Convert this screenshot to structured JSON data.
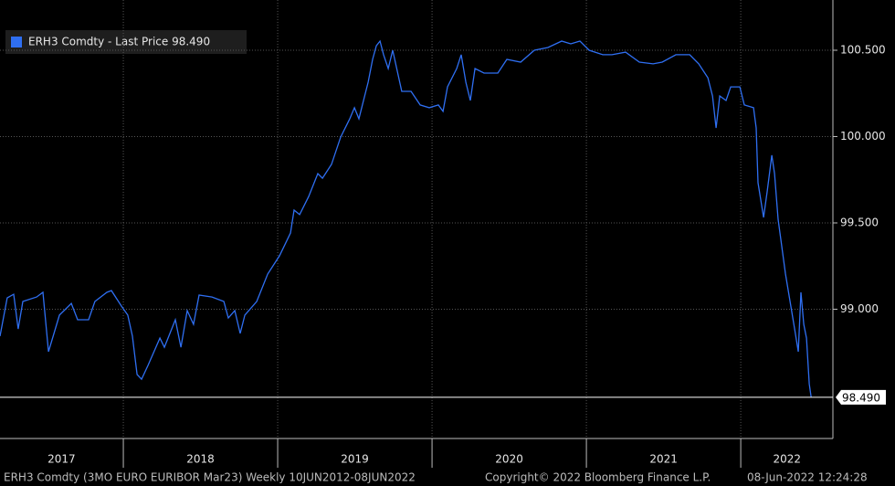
{
  "chart_data": {
    "type": "line",
    "series": [
      {
        "name": "ERH3 Comdty - Last Price 98.490",
        "color": "#2f6ff2",
        "x": [
          2017.201,
          2017.248,
          2017.29,
          2017.319,
          2017.349,
          2017.438,
          2017.479,
          2017.515,
          2017.586,
          2017.663,
          2017.704,
          2017.775,
          2017.816,
          2017.893,
          2017.923,
          2017.988,
          2018.029,
          2018.059,
          2018.089,
          2018.118,
          2018.16,
          2018.237,
          2018.266,
          2018.337,
          2018.373,
          2018.414,
          2018.455,
          2018.491,
          2018.574,
          2018.651,
          2018.68,
          2018.722,
          2018.757,
          2018.787,
          2018.864,
          2018.935,
          2019.012,
          2019.083,
          2019.106,
          2019.142,
          2019.201,
          2019.26,
          2019.29,
          2019.349,
          2019.408,
          2019.467,
          2019.497,
          2019.526,
          2019.586,
          2019.615,
          2019.639,
          2019.663,
          2019.686,
          2019.716,
          2019.745,
          2019.804,
          2019.864,
          2019.923,
          2019.982,
          2020.041,
          2020.071,
          2020.1,
          2020.16,
          2020.189,
          2020.219,
          2020.248,
          2020.278,
          2020.337,
          2020.426,
          2020.485,
          2020.574,
          2020.663,
          2020.751,
          2020.84,
          2020.899,
          2020.958,
          2021.018,
          2021.106,
          2021.166,
          2021.254,
          2021.343,
          2021.432,
          2021.491,
          2021.58,
          2021.669,
          2021.728,
          2021.787,
          2021.817,
          2021.84,
          2021.864,
          2021.905,
          2021.935,
          2021.994,
          2022.023,
          2022.083,
          2022.1,
          2022.112,
          2022.148,
          2022.171,
          2022.201,
          2022.219,
          2022.242,
          2022.29,
          2022.349,
          2022.373,
          2022.39,
          2022.408,
          2022.426,
          2022.444,
          2022.456
        ],
        "values": [
          98.844,
          99.066,
          99.087,
          98.886,
          99.045,
          99.071,
          99.098,
          98.754,
          98.966,
          99.034,
          98.939,
          98.939,
          99.045,
          99.098,
          99.108,
          99.018,
          98.966,
          98.844,
          98.622,
          98.595,
          98.675,
          98.833,
          98.78,
          98.939,
          98.78,
          98.992,
          98.913,
          99.082,
          99.071,
          99.045,
          98.95,
          98.992,
          98.86,
          98.966,
          99.045,
          99.204,
          99.31,
          99.442,
          99.574,
          99.548,
          99.653,
          99.786,
          99.759,
          99.839,
          99.997,
          100.103,
          100.167,
          100.103,
          100.315,
          100.447,
          100.526,
          100.553,
          100.474,
          100.394,
          100.5,
          100.262,
          100.262,
          100.183,
          100.167,
          100.183,
          100.146,
          100.288,
          100.394,
          100.474,
          100.315,
          100.209,
          100.394,
          100.368,
          100.368,
          100.447,
          100.431,
          100.5,
          100.516,
          100.553,
          100.537,
          100.553,
          100.5,
          100.474,
          100.474,
          100.489,
          100.431,
          100.421,
          100.431,
          100.474,
          100.474,
          100.421,
          100.341,
          100.235,
          100.05,
          100.235,
          100.209,
          100.288,
          100.288,
          100.183,
          100.167,
          100.05,
          99.733,
          99.532,
          99.68,
          99.892,
          99.786,
          99.521,
          99.204,
          98.886,
          98.754,
          99.098,
          98.913,
          98.833,
          98.568,
          98.49
        ]
      }
    ],
    "xlim": [
      2017.201,
      2022.597
    ],
    "ylim": [
      98.262,
      100.791
    ],
    "xticks": [
      {
        "value": 2017.6,
        "label": "2017"
      },
      {
        "value": 2018.5,
        "label": "2018"
      },
      {
        "value": 2019.5,
        "label": "2019"
      },
      {
        "value": 2020.5,
        "label": "2020"
      },
      {
        "value": 2021.5,
        "label": "2021"
      },
      {
        "value": 2022.3,
        "label": "2022"
      }
    ],
    "xgrid": [
      2018,
      2019,
      2020,
      2021,
      2022
    ],
    "yticks": [
      {
        "value": 99,
        "label": "99.000"
      },
      {
        "value": 99.5,
        "label": "99.500"
      },
      {
        "value": 100,
        "label": "100.000"
      },
      {
        "value": 100.5,
        "label": "100.500"
      }
    ],
    "last_price": 98.49,
    "last_price_label": "98.490",
    "grid": true,
    "footer": [
      "ERH3 Comdty (3MO EURO EURIBOR  Mar23) Weekly 10JUN2012-08JUN2022",
      "Copyright© 2022 Bloomberg Finance L.P.",
      "08-Jun-2022 12:24:28"
    ]
  }
}
